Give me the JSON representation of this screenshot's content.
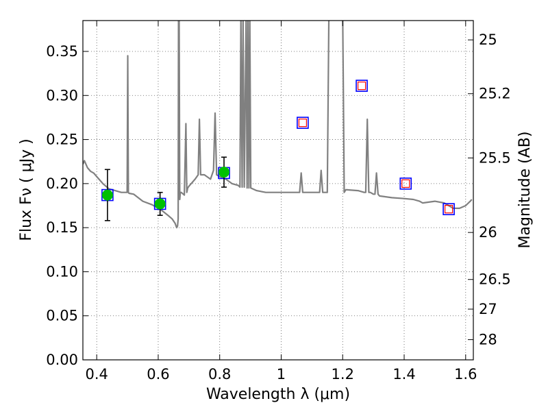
{
  "chart_data": {
    "type": "scatter",
    "xlabel": "Wavelength  λ (μm)",
    "ylabel": "Flux  Fν  ( μJy )",
    "ylabel_right": "Magnitude (AB)",
    "xlim": [
      0.355,
      1.625
    ],
    "ylim": [
      0.0,
      0.385
    ],
    "grid": true,
    "x_ticks": [
      {
        "value": 0.4,
        "label": "0.4"
      },
      {
        "value": 0.6,
        "label": "0.6"
      },
      {
        "value": 0.8,
        "label": "0.8"
      },
      {
        "value": 1.0,
        "label": "1"
      },
      {
        "value": 1.2,
        "label": "1.2"
      },
      {
        "value": 1.4,
        "label": "1.4"
      },
      {
        "value": 1.6,
        "label": "1.6"
      }
    ],
    "y_ticks": [
      {
        "value": 0.0,
        "label": "0.00"
      },
      {
        "value": 0.05,
        "label": "0.05"
      },
      {
        "value": 0.1,
        "label": "0.10"
      },
      {
        "value": 0.15,
        "label": "0.15"
      },
      {
        "value": 0.2,
        "label": "0.20"
      },
      {
        "value": 0.25,
        "label": "0.25"
      },
      {
        "value": 0.3,
        "label": "0.30"
      },
      {
        "value": 0.35,
        "label": "0.35"
      }
    ],
    "y2_ticks": [
      {
        "mag": 25,
        "label": "25"
      },
      {
        "mag": 25.2,
        "label": "25.2"
      },
      {
        "mag": 25.5,
        "label": "25.5"
      },
      {
        "mag": 26,
        "label": "26"
      },
      {
        "mag": 26.5,
        "label": "26.5"
      },
      {
        "mag": 27,
        "label": "27"
      },
      {
        "mag": 28,
        "label": "28"
      }
    ],
    "model_spectrum": {
      "color": "#808080",
      "x": [
        0.355,
        0.36,
        0.37,
        0.38,
        0.39,
        0.4,
        0.42,
        0.44,
        0.46,
        0.48,
        0.495,
        0.499,
        0.501,
        0.503,
        0.505,
        0.52,
        0.55,
        0.58,
        0.61,
        0.635,
        0.645,
        0.655,
        0.66,
        0.663,
        0.665,
        0.666,
        0.668,
        0.67,
        0.672,
        0.675,
        0.685,
        0.69,
        0.693,
        0.696,
        0.7,
        0.72,
        0.73,
        0.734,
        0.738,
        0.75,
        0.77,
        0.78,
        0.785,
        0.79,
        0.8,
        0.82,
        0.84,
        0.86,
        0.866,
        0.869,
        0.873,
        0.876,
        0.88,
        0.886,
        0.889,
        0.892,
        0.895,
        0.898,
        0.901,
        0.92,
        0.95,
        1.0,
        1.03,
        1.05,
        1.06,
        1.065,
        1.07,
        1.09,
        1.11,
        1.125,
        1.13,
        1.135,
        1.15,
        1.155,
        1.158,
        1.16,
        1.165,
        1.18,
        1.2,
        1.205,
        1.21,
        1.215,
        1.25,
        1.27,
        1.275,
        1.28,
        1.285,
        1.29,
        1.3,
        1.305,
        1.31,
        1.315,
        1.32,
        1.36,
        1.4,
        1.43,
        1.45,
        1.46,
        1.5,
        1.53,
        1.545,
        1.56,
        1.58,
        1.6,
        1.615,
        1.62
      ],
      "y": [
        0.222,
        0.226,
        0.218,
        0.214,
        0.212,
        0.208,
        0.2,
        0.194,
        0.192,
        0.19,
        0.19,
        0.19,
        0.345,
        0.19,
        0.189,
        0.188,
        0.18,
        0.176,
        0.17,
        0.163,
        0.16,
        0.155,
        0.15,
        0.152,
        0.16,
        0.39,
        0.39,
        0.182,
        0.19,
        0.19,
        0.187,
        0.268,
        0.19,
        0.195,
        0.197,
        0.205,
        0.21,
        0.273,
        0.21,
        0.21,
        0.205,
        0.215,
        0.28,
        0.21,
        0.208,
        0.205,
        0.2,
        0.198,
        0.196,
        0.39,
        0.196,
        0.39,
        0.196,
        0.39,
        0.195,
        0.39,
        0.195,
        0.39,
        0.195,
        0.192,
        0.19,
        0.19,
        0.19,
        0.19,
        0.19,
        0.212,
        0.19,
        0.19,
        0.19,
        0.19,
        0.215,
        0.19,
        0.19,
        0.39,
        0.39,
        0.39,
        0.39,
        0.39,
        0.39,
        0.19,
        0.193,
        0.193,
        0.192,
        0.19,
        0.19,
        0.273,
        0.19,
        0.19,
        0.188,
        0.188,
        0.212,
        0.188,
        0.186,
        0.184,
        0.183,
        0.182,
        0.18,
        0.178,
        0.18,
        0.178,
        0.175,
        0.172,
        0.172,
        0.175,
        0.18,
        0.182
      ]
    },
    "blue_squares": [
      {
        "x": 0.435,
        "y": 0.187
      },
      {
        "x": 0.606,
        "y": 0.177
      },
      {
        "x": 0.814,
        "y": 0.212
      },
      {
        "x": 1.07,
        "y": 0.269
      },
      {
        "x": 1.262,
        "y": 0.311
      },
      {
        "x": 1.405,
        "y": 0.2
      },
      {
        "x": 1.545,
        "y": 0.171
      }
    ],
    "red_squares": [
      {
        "x": 1.07,
        "y": 0.269
      },
      {
        "x": 1.262,
        "y": 0.311
      },
      {
        "x": 1.405,
        "y": 0.2
      },
      {
        "x": 1.545,
        "y": 0.171
      }
    ],
    "green_points": [
      {
        "x": 0.435,
        "y": 0.187,
        "err": 0.029
      },
      {
        "x": 0.606,
        "y": 0.177,
        "err": 0.013
      },
      {
        "x": 0.814,
        "y": 0.213,
        "err": 0.017
      }
    ],
    "colors": {
      "blue": "#0000ff",
      "red": "#ff0000",
      "green": "#00c000",
      "grid": "#555555"
    }
  }
}
